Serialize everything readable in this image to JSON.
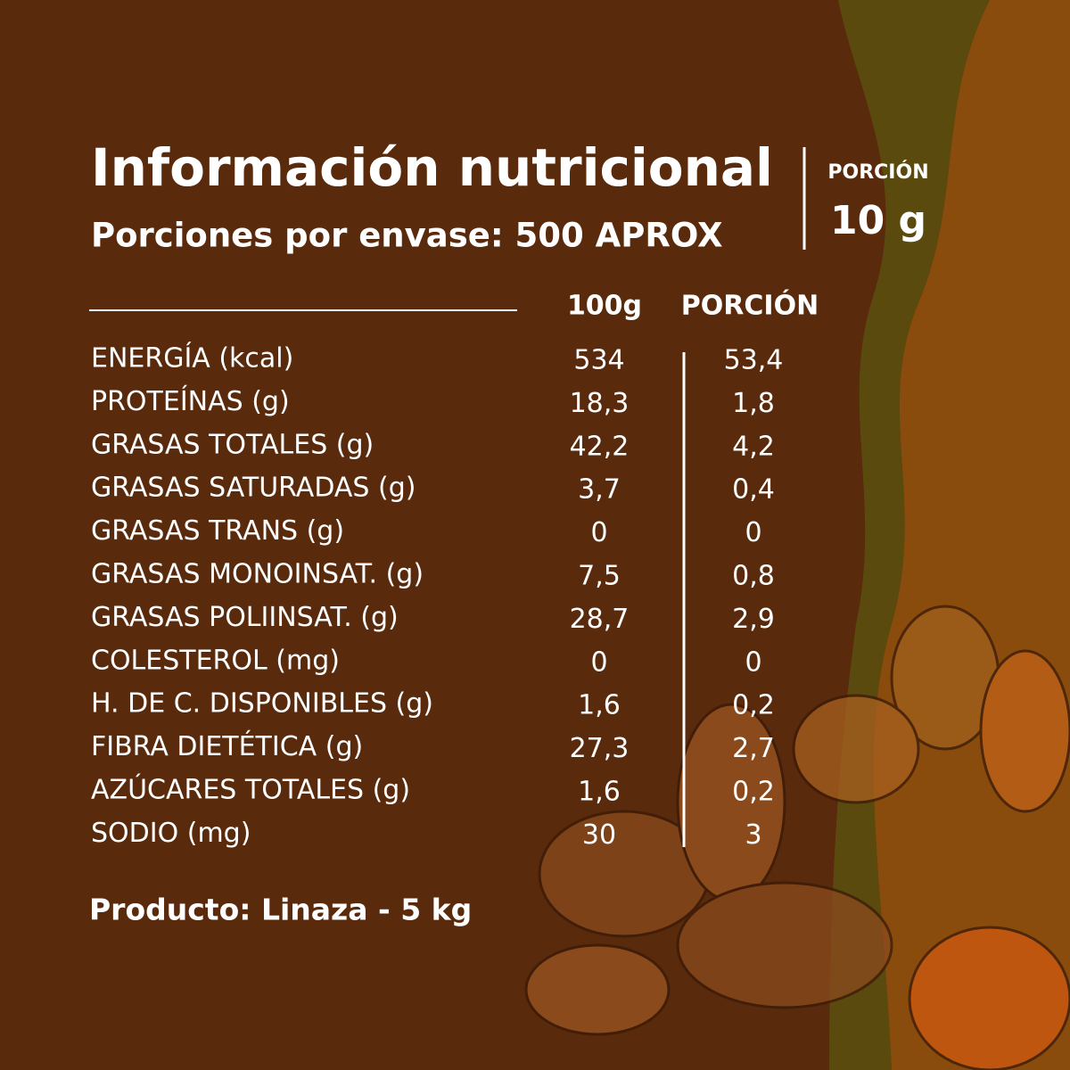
{
  "header": {
    "title": "Información nutricional",
    "servings": "Porciones por envase: 500 APROX",
    "portion_label": "PORCIÓN",
    "portion_size": "10 g"
  },
  "table": {
    "columns": [
      "100g",
      "PORCIÓN"
    ],
    "rows": [
      [
        "ENERGÍA (kcal)",
        "534",
        "53,4"
      ],
      [
        "PROTEÍNAS (g)",
        "18,3",
        "1,8"
      ],
      [
        "GRASAS TOTALES (g)",
        "42,2",
        "4,2"
      ],
      [
        "GRASAS SATURADAS (g)",
        "3,7",
        "0,4"
      ],
      [
        "GRASAS TRANS (g)",
        "0",
        "0"
      ],
      [
        "GRASAS MONOINSAT. (g)",
        "7,5",
        "0,8"
      ],
      [
        "GRASAS POLIINSAT. (g)",
        "28,7",
        "2,9"
      ],
      [
        "COLESTEROL (mg)",
        "0",
        "0"
      ],
      [
        "H. DE C. DISPONIBLES (g)",
        "1,6",
        "0,2"
      ],
      [
        "FIBRA DIETÉTICA (g)",
        "27,3",
        "2,7"
      ],
      [
        "AZÚCARES TOTALES (g)",
        "1,6",
        "0,2"
      ],
      [
        "SODIO (mg)",
        "30",
        "3"
      ]
    ]
  },
  "footer": "Producto: Linaza - 5 kg"
}
